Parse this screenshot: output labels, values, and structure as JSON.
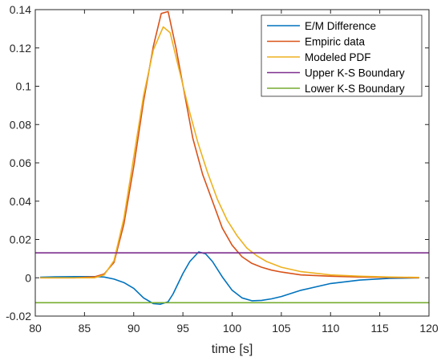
{
  "chart_data": {
    "type": "line",
    "title": "",
    "xlabel": "time [s]",
    "ylabel": "",
    "xlim": [
      80,
      120
    ],
    "ylim": [
      -0.02,
      0.14
    ],
    "xticks": [
      80,
      85,
      90,
      95,
      100,
      105,
      110,
      115,
      120
    ],
    "xtick_labels": [
      "80",
      "85",
      "90",
      "95",
      "100",
      "105",
      "110",
      "115",
      "120"
    ],
    "yticks": [
      -0.02,
      0,
      0.02,
      0.04,
      0.06,
      0.08,
      0.1,
      0.12,
      0.14
    ],
    "ytick_labels": [
      "-0.02",
      "0",
      "0.02",
      "0.04",
      "0.06",
      "0.08",
      "0.1",
      "0.12",
      "0.14"
    ],
    "grid": false,
    "legend_position": "top-right",
    "series": [
      {
        "name": "E/M Difference",
        "color": "#0072BD",
        "x": [
          80.5,
          82,
          84,
          86,
          87,
          88,
          89,
          90,
          91,
          92,
          92.7,
          93.5,
          94,
          95,
          95.7,
          96.6,
          97.3,
          98,
          99,
          100,
          101,
          102,
          103,
          104,
          105,
          107,
          110,
          113,
          116,
          119
        ],
        "y": [
          0.0003,
          0.0005,
          0.0006,
          0.0006,
          0.0004,
          -0.0007,
          -0.0025,
          -0.0055,
          -0.0105,
          -0.0135,
          -0.0138,
          -0.0125,
          -0.0085,
          0.0022,
          0.0085,
          0.0135,
          0.0125,
          0.0085,
          0.0005,
          -0.0065,
          -0.0105,
          -0.012,
          -0.0118,
          -0.011,
          -0.0098,
          -0.0065,
          -0.003,
          -0.0012,
          -0.0003,
          0.0
        ]
      },
      {
        "name": "Empiric data",
        "color": "#D95319",
        "x": [
          80.5,
          84,
          86,
          87,
          88,
          89,
          90,
          91,
          92,
          92.8,
          93.5,
          94.3,
          95.2,
          96,
          97,
          98,
          99,
          100,
          101,
          102,
          103,
          104,
          105,
          107,
          110,
          113,
          116,
          119
        ],
        "y": [
          0.0,
          0.0,
          0.0005,
          0.002,
          0.008,
          0.028,
          0.058,
          0.092,
          0.121,
          0.138,
          0.139,
          0.12,
          0.095,
          0.073,
          0.054,
          0.04,
          0.026,
          0.017,
          0.011,
          0.0075,
          0.0055,
          0.004,
          0.003,
          0.0015,
          0.0008,
          0.0004,
          0.0002,
          0.0
        ]
      },
      {
        "name": "Modeled PDF",
        "color": "#EDB120",
        "x": [
          80.5,
          84,
          86,
          87,
          88,
          89,
          90,
          91,
          92,
          93,
          93.7,
          94.5,
          95.5,
          96.5,
          97.5,
          98.5,
          99.5,
          100.5,
          101.5,
          102.5,
          103.5,
          105,
          107,
          110,
          113,
          116,
          119
        ],
        "y": [
          0.0,
          0.0,
          0.0,
          0.0015,
          0.009,
          0.031,
          0.063,
          0.095,
          0.119,
          0.131,
          0.128,
          0.111,
          0.09,
          0.071,
          0.055,
          0.041,
          0.03,
          0.022,
          0.0155,
          0.0115,
          0.0085,
          0.0055,
          0.0032,
          0.0015,
          0.0008,
          0.0004,
          0.0002
        ]
      },
      {
        "name": "Upper K-S Boundary",
        "color": "#7E2F8E",
        "x": [
          80,
          120
        ],
        "y": [
          0.013,
          0.013
        ]
      },
      {
        "name": "Lower K-S Boundary",
        "color": "#77AC30",
        "x": [
          80,
          120
        ],
        "y": [
          -0.013,
          -0.013
        ]
      }
    ]
  }
}
